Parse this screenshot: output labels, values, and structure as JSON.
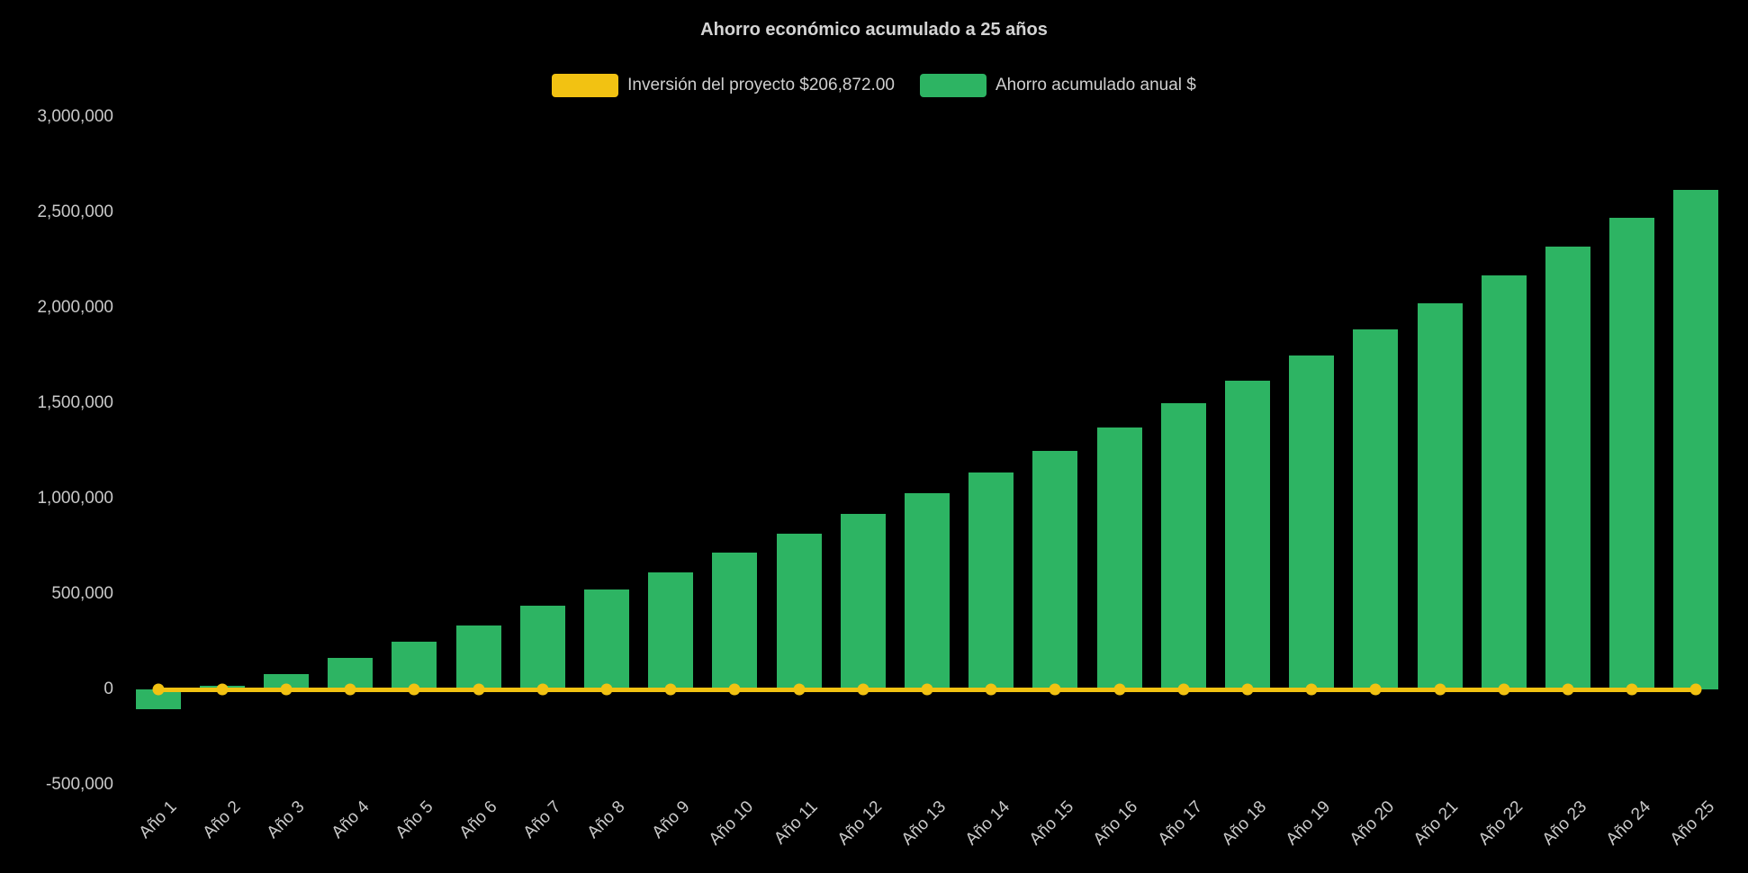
{
  "chart_data": {
    "type": "bar",
    "title": "Ahorro económico acumulado a 25 años",
    "xlabel": "",
    "ylabel": "",
    "ylim": [
      -500000,
      3000000
    ],
    "ytick_step": 500000,
    "ytick_labels": [
      "3,000,000",
      "2,500,000",
      "2,000,000",
      "1,500,000",
      "1,000,000",
      "500,000",
      "0",
      "-500,000"
    ],
    "grid": false,
    "legend_position": "top",
    "background_color": "#000000",
    "text_color": "#c9c9c9",
    "categories": [
      "Año 1",
      "Año 2",
      "Año 3",
      "Año 4",
      "Año 5",
      "Año 6",
      "Año 7",
      "Año 8",
      "Año 9",
      "Año 10",
      "Año 11",
      "Año 12",
      "Año 13",
      "Año 14",
      "Año 15",
      "Año 16",
      "Año 17",
      "Año 18",
      "Año 19",
      "Año 20",
      "Año 21",
      "Año 22",
      "Año 23",
      "Año 24",
      "Año 25"
    ],
    "series": [
      {
        "name": "Inversión del proyecto $206,872.00",
        "type": "line",
        "color": "#f2c212",
        "marker": "circle",
        "values": [
          0,
          0,
          0,
          0,
          0,
          0,
          0,
          0,
          0,
          0,
          0,
          0,
          0,
          0,
          0,
          0,
          0,
          0,
          0,
          0,
          0,
          0,
          0,
          0,
          0
        ]
      },
      {
        "name": "Ahorro acumulado anual $",
        "type": "bar",
        "color": "#2db463",
        "values": [
          -105000,
          20000,
          80000,
          165000,
          250000,
          335000,
          440000,
          525000,
          615000,
          715000,
          815000,
          920000,
          1030000,
          1135000,
          1250000,
          1375000,
          1500000,
          1620000,
          1750000,
          1885000,
          2025000,
          2170000,
          2320000,
          2470000,
          2620000
        ]
      }
    ]
  }
}
